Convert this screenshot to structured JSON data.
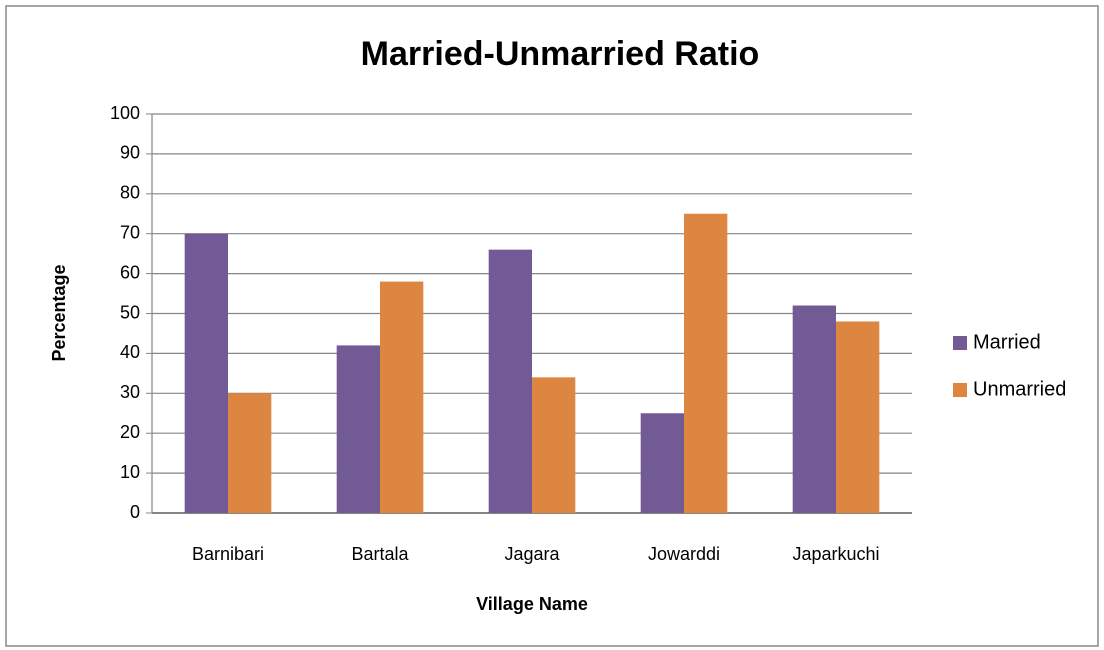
{
  "chart_data": {
    "type": "bar",
    "title": "Married-Unmarried Ratio",
    "x_label": "Village Name",
    "y_label": "Percentage",
    "categories": [
      "Barnibari",
      "Bartala",
      "Jagara",
      "Jowarddi",
      "Japarkuchi"
    ],
    "series": [
      {
        "name": "Married",
        "color": "#725a94",
        "values": [
          70,
          42,
          66,
          25,
          52
        ]
      },
      {
        "name": "Unmarried",
        "color": "#dd8642",
        "values": [
          30,
          58,
          34,
          75,
          48
        ]
      }
    ],
    "ylim": [
      0,
      100
    ],
    "yticks": [
      0,
      10,
      20,
      30,
      40,
      50,
      60,
      70,
      80,
      90,
      100
    ],
    "grid": true,
    "legend": "right"
  }
}
